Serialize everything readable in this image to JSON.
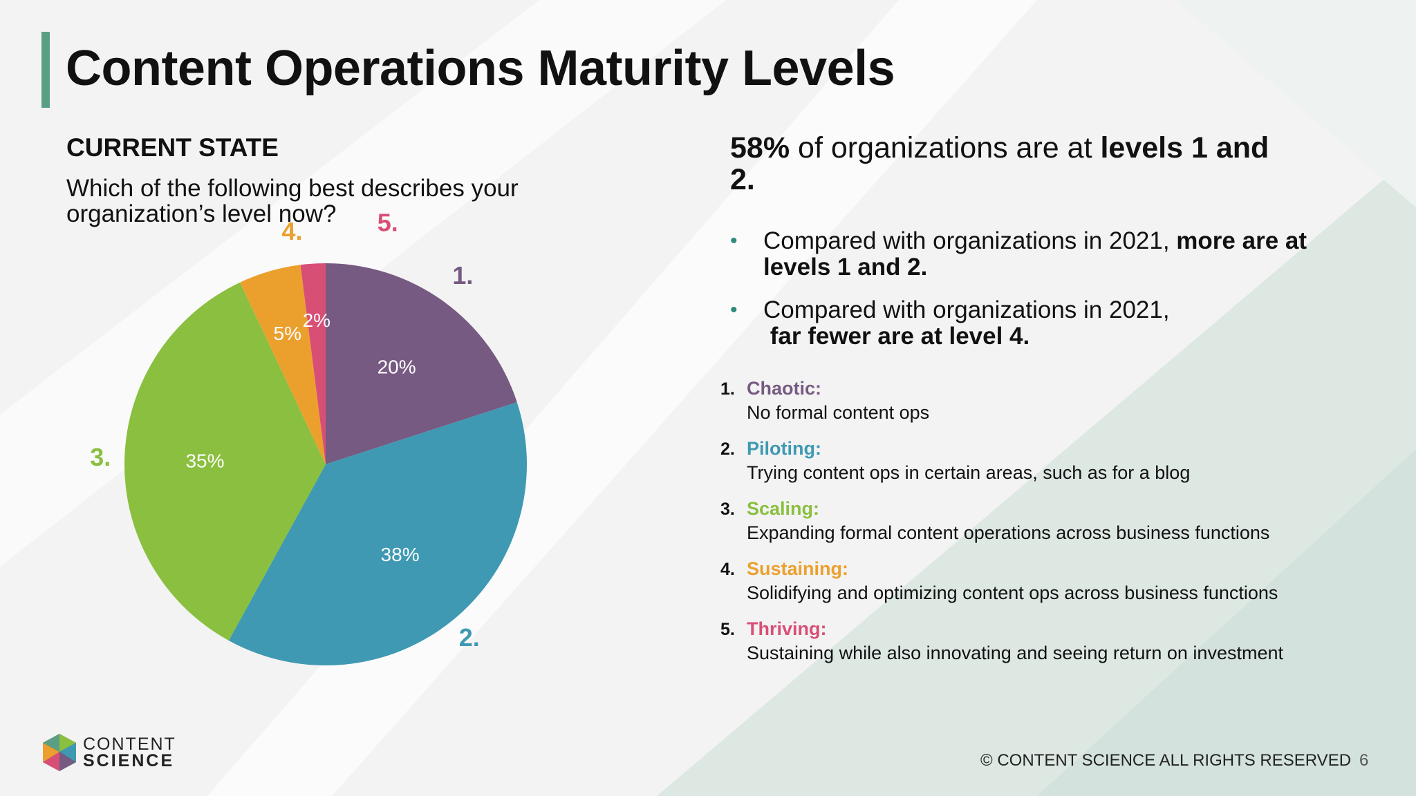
{
  "slide": {
    "title": "Content Operations Maturity Levels",
    "section_label": "CURRENT STATE",
    "question": "Which of the following best describes your organization’s level now?"
  },
  "headline": {
    "pct": "58%",
    "text1": " of organizations are at ",
    "bold": "levels 1 and 2."
  },
  "bullets": [
    {
      "text": "Compared with organizations in 2021, ",
      "bold": "more are at levels 1 and 2."
    },
    {
      "text": "Compared with organizations in 2021, ",
      "bold": "far fewer are at level 4."
    }
  ],
  "levels": [
    {
      "num": "1.",
      "name": "Chaotic:",
      "desc": "No formal content ops",
      "color": "#765a82"
    },
    {
      "num": "2.",
      "name": "Piloting:",
      "desc": "Trying content ops in certain areas, such as for a blog",
      "color": "#3f99b2"
    },
    {
      "num": "3.",
      "name": "Scaling:",
      "desc": "Expanding formal content operations across business functions",
      "color": "#8abf3f"
    },
    {
      "num": "4.",
      "name": "Sustaining:",
      "desc": "Solidifying and optimizing content ops across business functions",
      "color": "#eba02e"
    },
    {
      "num": "5.",
      "name": "Thriving:",
      "desc": "Sustaining while also innovating and seeing return on investment",
      "color": "#d84f76"
    }
  ],
  "chart_data": {
    "type": "pie",
    "categories": [
      "1.",
      "2.",
      "3.",
      "4.",
      "5."
    ],
    "values": [
      20,
      38,
      35,
      5,
      2
    ],
    "value_labels": [
      "20%",
      "38%",
      "35%",
      "5%",
      "2%"
    ],
    "colors": [
      "#765a82",
      "#3f99b2",
      "#8abf3f",
      "#eba02e",
      "#d84f76"
    ],
    "start_angle_deg": 0,
    "direction": "clockwise"
  },
  "logo": {
    "line1": "CONTENT",
    "line2": "SCIENCE"
  },
  "footer": {
    "text": "© CONTENT SCIENCE ALL RIGHTS RESERVED",
    "page": "6"
  }
}
